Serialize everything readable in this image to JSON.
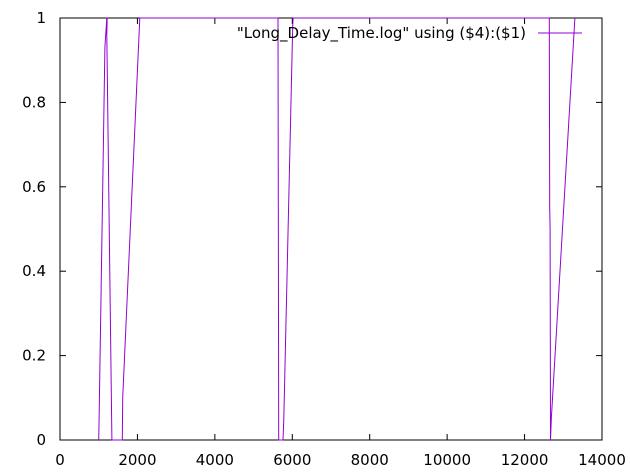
{
  "chart_data": {
    "type": "line",
    "title": "",
    "xlabel": "",
    "ylabel": "",
    "xlim": [
      0,
      14000
    ],
    "ylim": [
      0,
      1
    ],
    "x_ticks": [
      0,
      2000,
      4000,
      6000,
      8000,
      10000,
      12000,
      14000
    ],
    "y_ticks": [
      0,
      0.2,
      0.4,
      0.6,
      0.8,
      1
    ],
    "x_tick_labels": [
      "0",
      "2000",
      "4000",
      "6000",
      "8000",
      "10000",
      "12000",
      "14000"
    ],
    "y_tick_labels": [
      "0",
      "0.2",
      "0.4",
      "0.6",
      "0.8",
      "1"
    ],
    "grid": false,
    "legend_position": "top-right",
    "series": [
      {
        "name": "\"Long_Delay_Time.log\" using ($4):($1)",
        "color": "#9400d3",
        "points": [
          [
            1000,
            0
          ],
          [
            1010,
            0.05
          ],
          [
            1160,
            0.93
          ],
          [
            1180,
            0.96
          ],
          [
            1210,
            1.0
          ],
          [
            1220,
            1.0
          ],
          [
            1210,
            0.96
          ],
          [
            1340,
            0
          ],
          [
            1350,
            0
          ],
          [
            1610,
            0
          ],
          [
            1620,
            0.1
          ],
          [
            2060,
            1.0
          ],
          [
            5630,
            1.0
          ],
          [
            5650,
            0
          ],
          [
            5760,
            0
          ],
          [
            5780,
            0.05
          ],
          [
            6010,
            0.98
          ],
          [
            6020,
            1.0
          ],
          [
            12640,
            1.0
          ],
          [
            12650,
            0.55
          ],
          [
            12660,
            0.5
          ],
          [
            12670,
            0
          ],
          [
            12690,
            0.05
          ],
          [
            13300,
            1.0
          ]
        ]
      }
    ]
  }
}
